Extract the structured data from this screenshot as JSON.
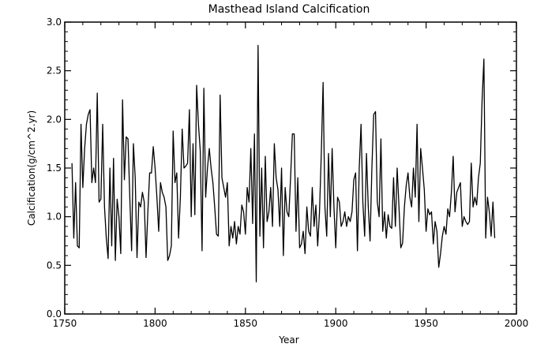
{
  "chart_data": {
    "type": "line",
    "title": "Masthead Island Calcification",
    "xlabel": "Year",
    "ylabel": "Calcification(g/cm^2.yr)",
    "xlim": [
      1750,
      2000
    ],
    "ylim": [
      0.0,
      3.0
    ],
    "x_ticks": [
      "1750",
      "1800",
      "1850",
      "1900",
      "1950",
      "2000"
    ],
    "y_ticks": [
      "0.0",
      "0.5",
      "1.0",
      "1.5",
      "2.0",
      "2.5",
      "3.0"
    ],
    "grid": false,
    "line_color": "#000000",
    "series": [
      {
        "x_start": 1754,
        "x_step": 1,
        "values": [
          1.55,
          0.78,
          1.35,
          0.7,
          0.68,
          1.95,
          1.3,
          1.7,
          1.95,
          2.05,
          2.1,
          1.35,
          1.5,
          1.35,
          2.27,
          1.15,
          1.18,
          1.95,
          1.1,
          0.78,
          0.57,
          1.5,
          0.7,
          1.6,
          0.55,
          1.18,
          1.0,
          0.62,
          2.2,
          1.38,
          1.82,
          1.8,
          1.2,
          0.65,
          1.75,
          1.4,
          0.58,
          1.15,
          1.1,
          1.25,
          1.15,
          0.58,
          1.05,
          1.45,
          1.45,
          1.72,
          1.5,
          1.2,
          0.85,
          1.35,
          1.25,
          1.2,
          1.1,
          0.55,
          0.6,
          0.7,
          1.88,
          1.35,
          1.45,
          0.78,
          1.2,
          1.9,
          1.5,
          1.52,
          1.55,
          2.1,
          1.0,
          1.75,
          1.02,
          2.35,
          1.95,
          1.68,
          0.65,
          2.32,
          1.2,
          1.5,
          1.7,
          1.5,
          1.35,
          1.1,
          0.82,
          0.8,
          2.25,
          1.4,
          1.3,
          1.2,
          1.35,
          0.7,
          0.9,
          0.78,
          0.95,
          0.72,
          0.9,
          0.82,
          1.12,
          1.05,
          0.82,
          1.3,
          1.15,
          1.7,
          0.93,
          1.85,
          0.33,
          2.76,
          0.8,
          1.5,
          0.68,
          1.62,
          0.95,
          1.05,
          1.3,
          0.9,
          1.75,
          1.4,
          1.28,
          0.9,
          1.5,
          0.6,
          1.3,
          1.05,
          1.0,
          1.4,
          1.85,
          1.85,
          0.85,
          1.4,
          0.68,
          0.72,
          0.85,
          0.62,
          1.1,
          0.85,
          0.8,
          1.3,
          0.9,
          1.12,
          0.7,
          1.05,
          1.65,
          2.38,
          1.1,
          0.8,
          1.65,
          1.0,
          1.7,
          1.1,
          0.68,
          1.2,
          1.15,
          0.9,
          0.95,
          1.05,
          0.9,
          1.0,
          0.95,
          1.05,
          1.38,
          1.45,
          0.65,
          1.5,
          1.95,
          1.15,
          0.8,
          1.65,
          1.1,
          0.75,
          1.5,
          2.05,
          2.08,
          1.15,
          1.0,
          1.8,
          0.85,
          1.05,
          0.78,
          1.02,
          0.9,
          0.88,
          1.4,
          0.9,
          1.5,
          1.1,
          0.68,
          0.73,
          1.1,
          1.32,
          1.45,
          1.2,
          1.1,
          1.5,
          1.2,
          1.95,
          0.95,
          1.7,
          1.5,
          1.28,
          0.85,
          1.08,
          1.02,
          1.05,
          0.72,
          0.95,
          0.85,
          0.48,
          0.62,
          0.8,
          0.9,
          0.82,
          1.08,
          1.0,
          1.25,
          1.62,
          1.05,
          1.25,
          1.3,
          1.35,
          0.9,
          1.0,
          0.95,
          0.92,
          0.95,
          1.55,
          1.1,
          1.2,
          1.12,
          1.4,
          1.55,
          2.2,
          2.62,
          0.78,
          1.2,
          1.05,
          0.8,
          1.15,
          0.78
        ]
      }
    ]
  }
}
